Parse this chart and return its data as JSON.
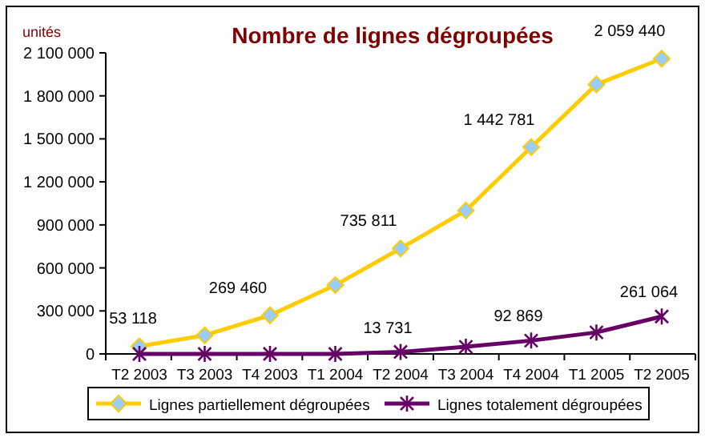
{
  "chart_data": {
    "type": "line",
    "title": "Nombre de lignes dégroupées",
    "ylabel": "unités",
    "categories": [
      "T2 2003",
      "T3 2003",
      "T4 2003",
      "T1 2004",
      "T2 2004",
      "T3 2004",
      "T4 2004",
      "T1 2005",
      "T2 2005"
    ],
    "series": [
      {
        "name": "Lignes partiellement dégroupées",
        "color": "#ffcc00",
        "marker": "diamond",
        "values": [
          53118,
          130000,
          269460,
          480000,
          735811,
          1000000,
          1442781,
          1880000,
          2059440
        ],
        "value_labels": [
          "53 118",
          null,
          "269 460",
          null,
          "735 811",
          null,
          "1 442 781",
          null,
          "2 059 440"
        ]
      },
      {
        "name": "Lignes totalement dégroupées",
        "color": "#660066",
        "marker": "cross",
        "values": [
          0,
          0,
          0,
          0,
          13731,
          50000,
          92869,
          150000,
          261064
        ],
        "value_labels": [
          null,
          null,
          null,
          null,
          "13 731",
          null,
          "92 869",
          null,
          "261 064"
        ]
      }
    ],
    "ylim": [
      0,
      2100000
    ],
    "yticks": [
      {
        "value": 0,
        "label": "0"
      },
      {
        "value": 300000,
        "label": "300 000"
      },
      {
        "value": 600000,
        "label": "600 000"
      },
      {
        "value": 900000,
        "label": "900 000"
      },
      {
        "value": 1200000,
        "label": "1 200 000"
      },
      {
        "value": 1500000,
        "label": "1 500 000"
      },
      {
        "value": 1800000,
        "label": "1 800 000"
      },
      {
        "value": 2100000,
        "label": "2 100 000"
      }
    ],
    "grid": false,
    "legend": "bottom"
  }
}
